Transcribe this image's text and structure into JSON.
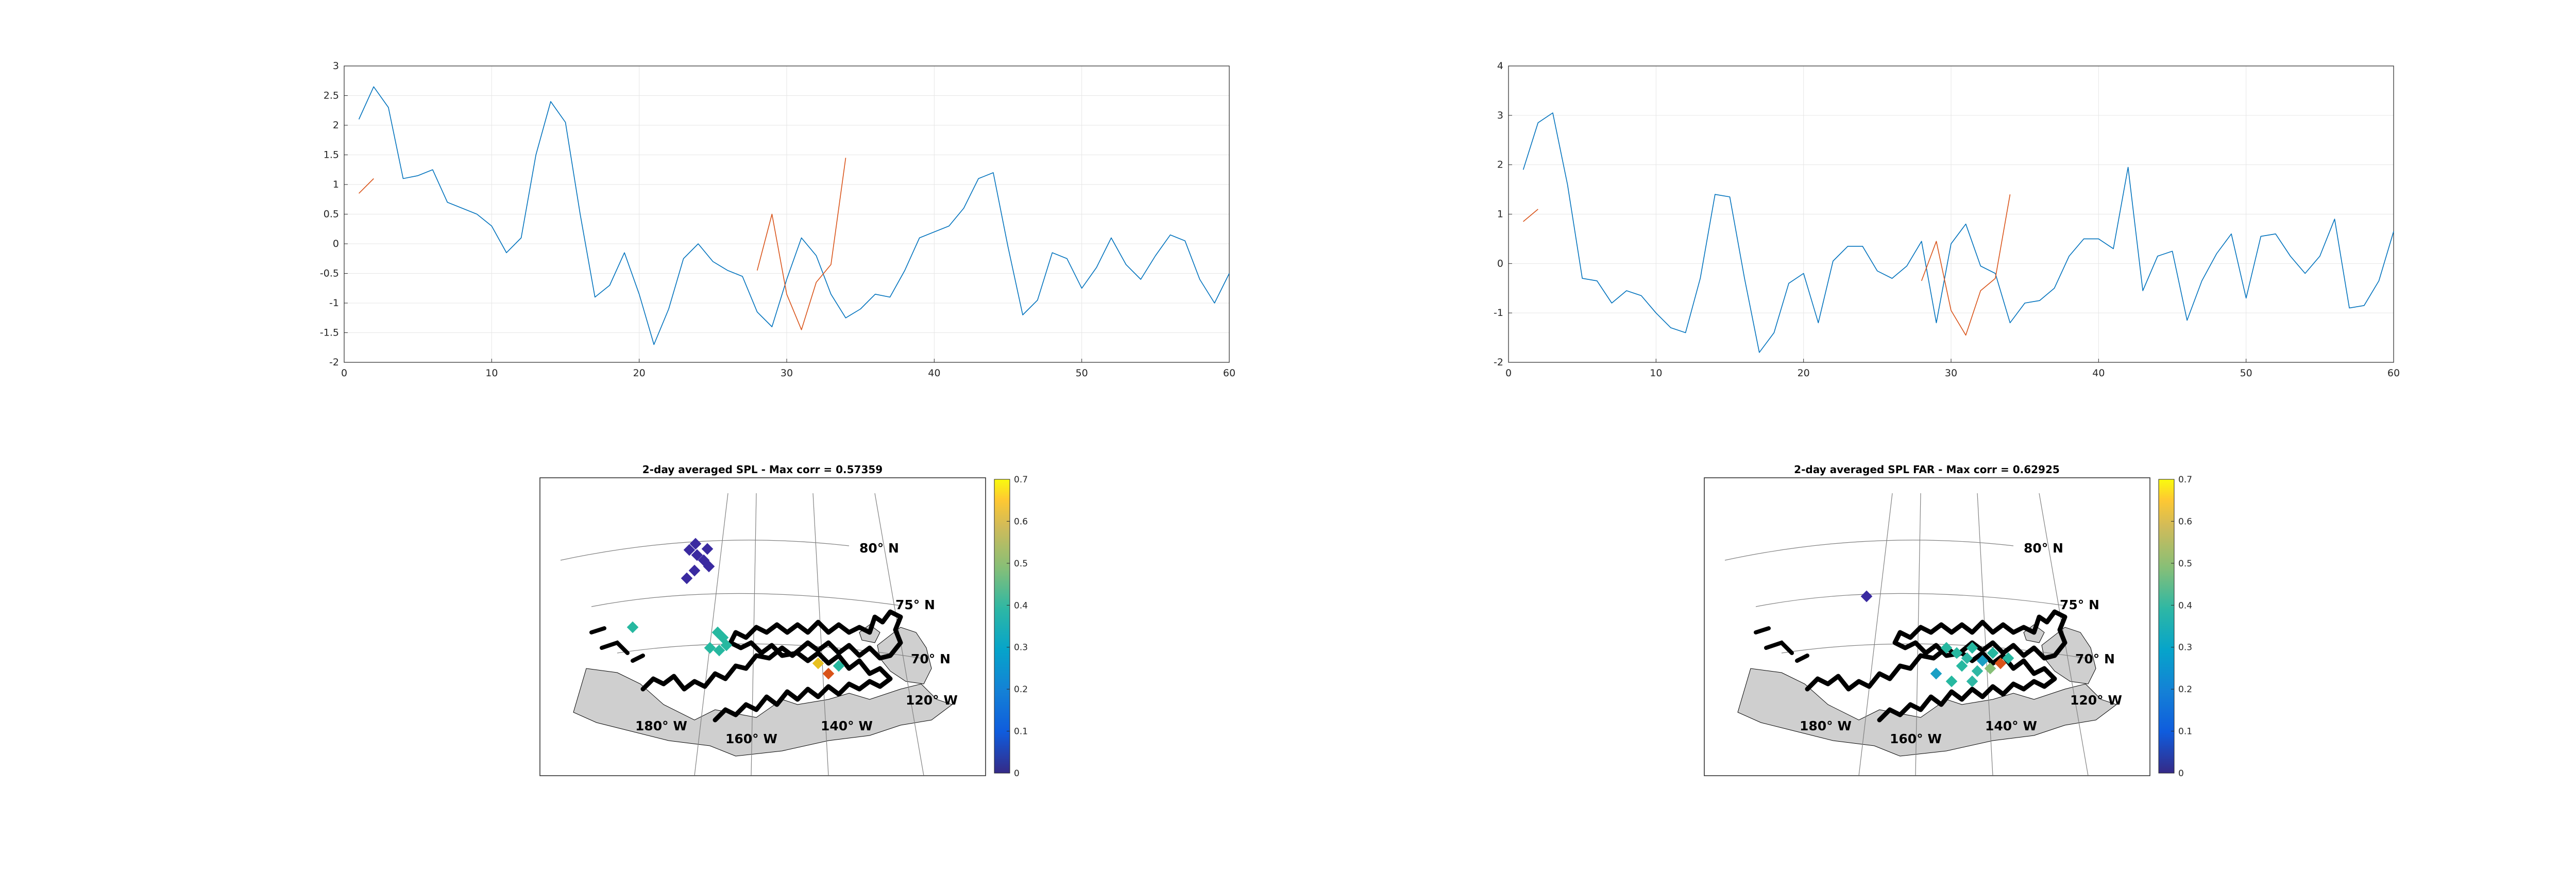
{
  "chart_data": [
    {
      "type": "line",
      "title": "",
      "xlabel": "",
      "ylabel": "",
      "xlim": [
        0,
        60
      ],
      "ylim": [
        -2,
        3
      ],
      "xticks": [
        "0",
        "10",
        "20",
        "30",
        "40",
        "50",
        "60"
      ],
      "yticks": [
        "-2",
        "-1.5",
        "-1",
        "-0.5",
        "0",
        "0.5",
        "1",
        "1.5",
        "2",
        "2.5",
        "3"
      ],
      "grid": true,
      "series": [
        {
          "color": "#0072BD",
          "x": [
            1,
            2,
            3,
            4,
            5,
            6,
            7,
            8,
            9,
            10,
            11,
            12,
            13,
            14,
            15,
            16,
            17,
            18,
            19,
            20,
            21,
            22,
            23,
            24,
            25,
            26,
            27,
            28,
            29,
            30,
            31,
            32,
            33,
            34,
            35,
            36,
            37,
            38,
            39,
            40,
            41,
            42,
            43,
            44,
            45,
            46,
            47,
            48,
            49,
            50,
            51,
            52,
            53,
            54,
            55,
            56,
            57,
            58,
            59,
            60
          ],
          "values": [
            2.1,
            2.65,
            2.3,
            1.1,
            1.15,
            1.25,
            0.7,
            0.6,
            0.5,
            0.3,
            -0.15,
            0.1,
            1.5,
            2.4,
            2.05,
            0.5,
            -0.9,
            -0.7,
            -0.15,
            -0.85,
            -1.7,
            -1.1,
            -0.25,
            0.0,
            -0.3,
            -0.45,
            -0.55,
            -1.15,
            -1.4,
            -0.6,
            0.1,
            -0.2,
            -0.85,
            -1.25,
            -1.1,
            -0.85,
            -0.9,
            -0.45,
            0.1,
            0.2,
            0.3,
            0.6,
            1.1,
            1.2,
            -0.05,
            -1.2,
            -0.95,
            -0.15,
            -0.25,
            -0.75,
            -0.4,
            0.1,
            -0.35,
            -0.6,
            -0.2,
            0.15,
            0.05,
            -0.6,
            -1.0,
            -0.5
          ]
        },
        {
          "color": "#D95319",
          "segments": [
            {
              "x": [
                1,
                2
              ],
              "values": [
                0.85,
                1.1
              ]
            },
            {
              "x": [
                28,
                29,
                30,
                31,
                32,
                33,
                34
              ],
              "values": [
                -0.45,
                0.5,
                -0.85,
                -1.45,
                -0.65,
                -0.35,
                1.45
              ]
            }
          ]
        }
      ]
    },
    {
      "type": "line",
      "title": "",
      "xlabel": "",
      "ylabel": "",
      "xlim": [
        0,
        60
      ],
      "ylim": [
        -2,
        4
      ],
      "xticks": [
        "0",
        "10",
        "20",
        "30",
        "40",
        "50",
        "60"
      ],
      "yticks": [
        "-2",
        "-1",
        "0",
        "1",
        "2",
        "3",
        "4"
      ],
      "grid": true,
      "series": [
        {
          "color": "#0072BD",
          "x": [
            1,
            2,
            3,
            4,
            5,
            6,
            7,
            8,
            9,
            10,
            11,
            12,
            13,
            14,
            15,
            16,
            17,
            18,
            19,
            20,
            21,
            22,
            23,
            24,
            25,
            26,
            27,
            28,
            29,
            30,
            31,
            32,
            33,
            34,
            35,
            36,
            37,
            38,
            39,
            40,
            41,
            42,
            43,
            44,
            45,
            46,
            47,
            48,
            49,
            50,
            51,
            52,
            53,
            54,
            55,
            56,
            57,
            58,
            59,
            60
          ],
          "values": [
            1.9,
            2.85,
            3.05,
            1.6,
            -0.3,
            -0.35,
            -0.8,
            -0.55,
            -0.65,
            -1.0,
            -1.3,
            -1.4,
            -0.3,
            1.4,
            1.35,
            -0.3,
            -1.8,
            -1.4,
            -0.4,
            -0.2,
            -1.2,
            0.05,
            0.35,
            0.35,
            -0.15,
            -0.3,
            -0.05,
            0.45,
            -1.2,
            0.4,
            0.8,
            -0.05,
            -0.2,
            -1.2,
            -0.8,
            -0.75,
            -0.5,
            0.15,
            0.5,
            0.5,
            0.3,
            1.95,
            -0.55,
            0.15,
            0.25,
            -1.15,
            -0.35,
            0.2,
            0.6,
            -0.7,
            0.55,
            0.6,
            0.15,
            -0.2,
            0.15,
            0.9,
            -0.9,
            -0.85,
            -0.35,
            0.65
          ]
        },
        {
          "color": "#D95319",
          "segments": [
            {
              "x": [
                1,
                2
              ],
              "values": [
                0.85,
                1.1
              ]
            },
            {
              "x": [
                28,
                29,
                30,
                31,
                32,
                33,
                34
              ],
              "values": [
                -0.35,
                0.45,
                -0.95,
                -1.45,
                -0.55,
                -0.3,
                1.4
              ]
            }
          ]
        }
      ]
    },
    {
      "type": "heatmap",
      "title": "2-day averaged SPL - Max corr = 0.57359",
      "colorbar": {
        "min": 0,
        "max": 0.7,
        "ticks": [
          "0",
          "0.1",
          "0.2",
          "0.3",
          "0.4",
          "0.5",
          "0.6",
          "0.7"
        ]
      },
      "map_labels": [
        "80° N",
        "75° N",
        "70° N",
        "180° W",
        "160° W",
        "140° W",
        "120° W"
      ],
      "colormap": "parula"
    },
    {
      "type": "heatmap",
      "title": "2-day averaged SPL FAR - Max corr = 0.62925",
      "colorbar": {
        "min": 0,
        "max": 0.7,
        "ticks": [
          "0",
          "0.1",
          "0.2",
          "0.3",
          "0.4",
          "0.5",
          "0.6",
          "0.7"
        ]
      },
      "map_labels": [
        "80° N",
        "75° N",
        "70° N",
        "180° W",
        "160° W",
        "140° W",
        "120° W"
      ],
      "colormap": "parula"
    }
  ]
}
